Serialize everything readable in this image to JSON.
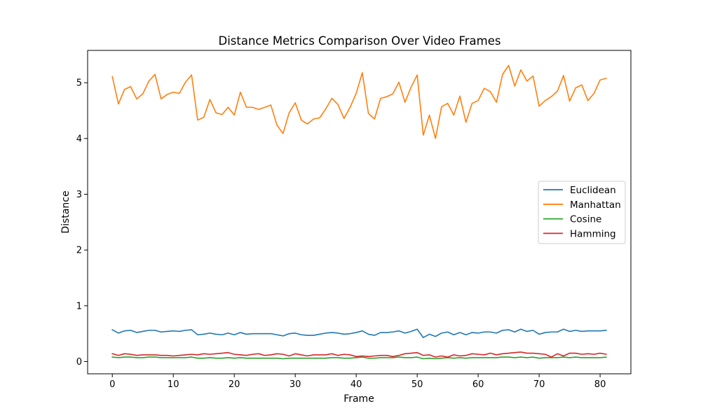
{
  "chart_data": {
    "type": "line",
    "title": "Distance Metrics Comparison Over Video Frames",
    "xlabel": "Frame",
    "ylabel": "Distance",
    "xlim": [
      -4.05,
      85.05
    ],
    "ylim": [
      -0.22,
      5.58
    ],
    "xticks": [
      0,
      10,
      20,
      30,
      40,
      50,
      60,
      70,
      80
    ],
    "yticks": [
      0,
      1,
      2,
      3,
      4,
      5
    ],
    "grid": false,
    "legend_position": "center-right",
    "x": [
      0,
      1,
      2,
      3,
      4,
      5,
      6,
      7,
      8,
      9,
      10,
      11,
      12,
      13,
      14,
      15,
      16,
      17,
      18,
      19,
      20,
      21,
      22,
      23,
      24,
      25,
      26,
      27,
      28,
      29,
      30,
      31,
      32,
      33,
      34,
      35,
      36,
      37,
      38,
      39,
      40,
      41,
      42,
      43,
      44,
      45,
      46,
      47,
      48,
      49,
      50,
      51,
      52,
      53,
      54,
      55,
      56,
      57,
      58,
      59,
      60,
      61,
      62,
      63,
      64,
      65,
      66,
      67,
      68,
      69,
      70,
      71,
      72,
      73,
      74,
      75,
      76,
      77,
      78,
      79,
      80,
      81
    ],
    "series": [
      {
        "name": "Euclidean",
        "color": "#1f77b4",
        "values": [
          0.57,
          0.51,
          0.55,
          0.56,
          0.52,
          0.54,
          0.56,
          0.56,
          0.53,
          0.54,
          0.55,
          0.54,
          0.56,
          0.57,
          0.48,
          0.49,
          0.51,
          0.49,
          0.48,
          0.51,
          0.48,
          0.52,
          0.49,
          0.5,
          0.5,
          0.5,
          0.5,
          0.48,
          0.46,
          0.5,
          0.51,
          0.48,
          0.47,
          0.47,
          0.49,
          0.51,
          0.52,
          0.51,
          0.49,
          0.5,
          0.52,
          0.55,
          0.49,
          0.47,
          0.52,
          0.52,
          0.53,
          0.55,
          0.51,
          0.54,
          0.58,
          0.43,
          0.49,
          0.45,
          0.51,
          0.53,
          0.48,
          0.52,
          0.48,
          0.52,
          0.51,
          0.53,
          0.53,
          0.51,
          0.56,
          0.57,
          0.53,
          0.58,
          0.54,
          0.56,
          0.49,
          0.52,
          0.53,
          0.53,
          0.58,
          0.54,
          0.56,
          0.54,
          0.55,
          0.55,
          0.55,
          0.56
        ]
      },
      {
        "name": "Manhattan",
        "color": "#ff7f0e",
        "values": [
          5.11,
          4.62,
          4.88,
          4.93,
          4.71,
          4.8,
          5.03,
          5.15,
          4.71,
          4.79,
          4.83,
          4.81,
          5.01,
          5.14,
          4.33,
          4.38,
          4.7,
          4.46,
          4.43,
          4.56,
          4.42,
          4.83,
          4.56,
          4.56,
          4.52,
          4.56,
          4.6,
          4.24,
          4.09,
          4.46,
          4.64,
          4.33,
          4.26,
          4.35,
          4.37,
          4.53,
          4.72,
          4.61,
          4.36,
          4.56,
          4.81,
          5.18,
          4.45,
          4.35,
          4.72,
          4.75,
          4.8,
          5.01,
          4.65,
          4.92,
          5.14,
          4.06,
          4.42,
          4.0,
          4.57,
          4.63,
          4.42,
          4.76,
          4.29,
          4.63,
          4.68,
          4.9,
          4.84,
          4.65,
          5.15,
          5.31,
          4.94,
          5.23,
          5.03,
          5.12,
          4.58,
          4.68,
          4.75,
          4.85,
          5.13,
          4.67,
          4.91,
          4.96,
          4.68,
          4.81,
          5.05,
          5.08
        ]
      },
      {
        "name": "Cosine",
        "color": "#2ca02c",
        "values": [
          0.08,
          0.07,
          0.08,
          0.08,
          0.07,
          0.07,
          0.08,
          0.08,
          0.07,
          0.07,
          0.07,
          0.07,
          0.07,
          0.08,
          0.06,
          0.06,
          0.07,
          0.06,
          0.06,
          0.07,
          0.06,
          0.07,
          0.06,
          0.06,
          0.06,
          0.06,
          0.06,
          0.06,
          0.05,
          0.06,
          0.06,
          0.06,
          0.06,
          0.06,
          0.06,
          0.06,
          0.07,
          0.07,
          0.06,
          0.06,
          0.07,
          0.08,
          0.06,
          0.06,
          0.07,
          0.07,
          0.07,
          0.08,
          0.07,
          0.07,
          0.08,
          0.05,
          0.06,
          0.05,
          0.06,
          0.07,
          0.06,
          0.07,
          0.06,
          0.07,
          0.07,
          0.07,
          0.07,
          0.07,
          0.08,
          0.08,
          0.07,
          0.08,
          0.07,
          0.08,
          0.06,
          0.07,
          0.07,
          0.07,
          0.08,
          0.07,
          0.08,
          0.07,
          0.07,
          0.07,
          0.07,
          0.08
        ]
      },
      {
        "name": "Hamming",
        "color": "#d62728",
        "values": [
          0.14,
          0.11,
          0.14,
          0.13,
          0.11,
          0.12,
          0.12,
          0.12,
          0.11,
          0.11,
          0.1,
          0.11,
          0.12,
          0.13,
          0.12,
          0.14,
          0.13,
          0.14,
          0.15,
          0.16,
          0.13,
          0.12,
          0.11,
          0.13,
          0.14,
          0.11,
          0.12,
          0.14,
          0.13,
          0.1,
          0.14,
          0.12,
          0.1,
          0.12,
          0.12,
          0.12,
          0.14,
          0.11,
          0.13,
          0.12,
          0.09,
          0.1,
          0.09,
          0.1,
          0.11,
          0.11,
          0.09,
          0.11,
          0.14,
          0.15,
          0.16,
          0.11,
          0.12,
          0.08,
          0.1,
          0.08,
          0.12,
          0.1,
          0.11,
          0.14,
          0.13,
          0.12,
          0.15,
          0.12,
          0.14,
          0.15,
          0.16,
          0.17,
          0.15,
          0.15,
          0.14,
          0.13,
          0.08,
          0.14,
          0.1,
          0.15,
          0.15,
          0.13,
          0.14,
          0.13,
          0.15,
          0.13
        ]
      }
    ]
  }
}
